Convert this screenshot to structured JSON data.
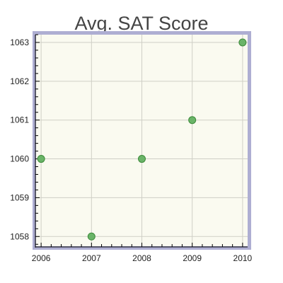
{
  "colors": {
    "plot_background": "#fafaf0",
    "border": "#aeaed2",
    "marker_fill": "#6ab468",
    "marker_stroke": "#3c8a3a",
    "grid": "#cfcfc6"
  },
  "chart_data": {
    "type": "scatter",
    "title": "Avg. SAT Score",
    "xlabel": "",
    "ylabel": "",
    "x": [
      2006,
      2007,
      2008,
      2009,
      2010
    ],
    "y": [
      1060,
      1058,
      1060,
      1061,
      1063
    ],
    "xlim": [
      2005.9,
      2010.1
    ],
    "ylim": [
      1057.75,
      1063.2
    ],
    "x_ticks": [
      2006,
      2007,
      2008,
      2009,
      2010
    ],
    "y_ticks": [
      1058,
      1059,
      1060,
      1061,
      1062,
      1063
    ],
    "grid": true,
    "legend": "none"
  }
}
